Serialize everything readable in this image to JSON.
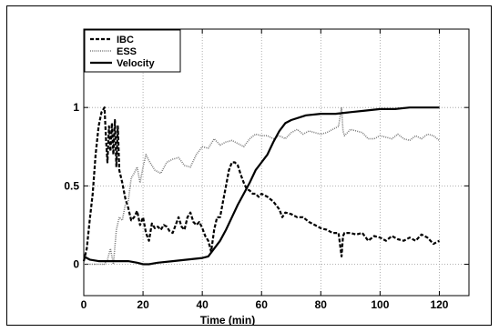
{
  "chart_data": {
    "type": "line",
    "title": "",
    "xlabel": "Time (min)",
    "ylabel": "",
    "xlim": [
      0,
      130
    ],
    "ylim": [
      -0.2,
      1.5
    ],
    "xticks": [
      0,
      20,
      40,
      60,
      80,
      100,
      120
    ],
    "xtick_labels": [
      "0",
      "20",
      "40",
      "60",
      "80",
      "100",
      "120"
    ],
    "yticks": [
      0,
      0.5,
      1
    ],
    "ytick_labels": [
      "0",
      "0.5",
      "1"
    ],
    "grid": true,
    "legend_position": "top-left",
    "series": [
      {
        "name": "IBC",
        "style": "dashed",
        "color": "#000000",
        "x": [
          0,
          1,
          2,
          3,
          4,
          5,
          6,
          7,
          7.5,
          8,
          8.5,
          9,
          9.5,
          10,
          10.5,
          11,
          11.5,
          12,
          13,
          14,
          15,
          16,
          17,
          18,
          19,
          20,
          21,
          22,
          23,
          24,
          25,
          26,
          27,
          28,
          29,
          30,
          31,
          32,
          33,
          34,
          35,
          36,
          37,
          38,
          39,
          40,
          41,
          42,
          43,
          44,
          45,
          46,
          47,
          48,
          49,
          50,
          51,
          52,
          53,
          54,
          55,
          56,
          57,
          58,
          59,
          60,
          62,
          64,
          66,
          67,
          68,
          70,
          72,
          74,
          76,
          78,
          80,
          82,
          84,
          86,
          87,
          87.5,
          88,
          90,
          92,
          94,
          96,
          98,
          100,
          102,
          104,
          106,
          108,
          110,
          112,
          114,
          116,
          118,
          120
        ],
        "y": [
          0.02,
          0.1,
          0.28,
          0.45,
          0.7,
          0.88,
          0.97,
          1.0,
          0.8,
          0.65,
          0.88,
          0.72,
          0.9,
          0.7,
          0.92,
          0.62,
          0.88,
          0.6,
          0.52,
          0.42,
          0.36,
          0.28,
          0.3,
          0.34,
          0.25,
          0.3,
          0.2,
          0.15,
          0.26,
          0.23,
          0.24,
          0.22,
          0.25,
          0.24,
          0.21,
          0.2,
          0.25,
          0.3,
          0.24,
          0.22,
          0.3,
          0.33,
          0.27,
          0.25,
          0.27,
          0.23,
          0.18,
          0.15,
          0.08,
          0.22,
          0.3,
          0.3,
          0.4,
          0.5,
          0.6,
          0.65,
          0.65,
          0.63,
          0.57,
          0.52,
          0.48,
          0.47,
          0.45,
          0.45,
          0.43,
          0.45,
          0.43,
          0.4,
          0.35,
          0.3,
          0.33,
          0.32,
          0.3,
          0.3,
          0.27,
          0.25,
          0.23,
          0.22,
          0.2,
          0.2,
          0.05,
          0.18,
          0.2,
          0.2,
          0.19,
          0.2,
          0.15,
          0.18,
          0.17,
          0.15,
          0.18,
          0.16,
          0.15,
          0.17,
          0.15,
          0.19,
          0.17,
          0.13,
          0.15
        ]
      },
      {
        "name": "ESS",
        "style": "dotted",
        "color": "#000000",
        "x": [
          0,
          4,
          7,
          8,
          9,
          10,
          11,
          12,
          13,
          14,
          15,
          16,
          17,
          18,
          19,
          20,
          21,
          22,
          24,
          26,
          28,
          30,
          32,
          34,
          36,
          38,
          40,
          42,
          44,
          46,
          48,
          50,
          52,
          54,
          56,
          58,
          60,
          62,
          64,
          66,
          68,
          70,
          72,
          74,
          76,
          78,
          80,
          82,
          84,
          86,
          87,
          87.5,
          88,
          89,
          90,
          92,
          94,
          96,
          98,
          100,
          102,
          104,
          106,
          108,
          110,
          112,
          114,
          116,
          118,
          120
        ],
        "y": [
          0,
          0,
          0,
          0.03,
          0.1,
          0.0,
          0.22,
          0.3,
          0.28,
          0.38,
          0.4,
          0.55,
          0.58,
          0.62,
          0.52,
          0.62,
          0.7,
          0.66,
          0.6,
          0.58,
          0.65,
          0.67,
          0.68,
          0.63,
          0.62,
          0.7,
          0.75,
          0.74,
          0.8,
          0.76,
          0.78,
          0.79,
          0.77,
          0.75,
          0.8,
          0.83,
          0.82,
          0.82,
          0.8,
          0.82,
          0.8,
          0.84,
          0.86,
          0.83,
          0.85,
          0.84,
          0.83,
          0.84,
          0.86,
          0.88,
          1.0,
          0.85,
          0.82,
          0.84,
          0.86,
          0.85,
          0.84,
          0.8,
          0.8,
          0.82,
          0.81,
          0.8,
          0.83,
          0.8,
          0.79,
          0.82,
          0.8,
          0.83,
          0.82,
          0.79
        ]
      },
      {
        "name": "Velocity",
        "style": "solid",
        "color": "#000000",
        "x": [
          0,
          2,
          5,
          10,
          15,
          18,
          20,
          22,
          25,
          30,
          35,
          40,
          42,
          44,
          46,
          48,
          50,
          52,
          54,
          56,
          58,
          60,
          62,
          64,
          66,
          68,
          70,
          75,
          80,
          85,
          90,
          95,
          100,
          105,
          110,
          115,
          120
        ],
        "y": [
          0.05,
          0.03,
          0.02,
          0.02,
          0.02,
          0.01,
          0.0,
          0.0,
          0.01,
          0.02,
          0.03,
          0.04,
          0.05,
          0.1,
          0.15,
          0.22,
          0.3,
          0.38,
          0.45,
          0.52,
          0.6,
          0.65,
          0.7,
          0.78,
          0.85,
          0.9,
          0.92,
          0.95,
          0.96,
          0.96,
          0.97,
          0.98,
          0.99,
          0.99,
          1.0,
          1.0,
          1.0
        ]
      }
    ]
  }
}
